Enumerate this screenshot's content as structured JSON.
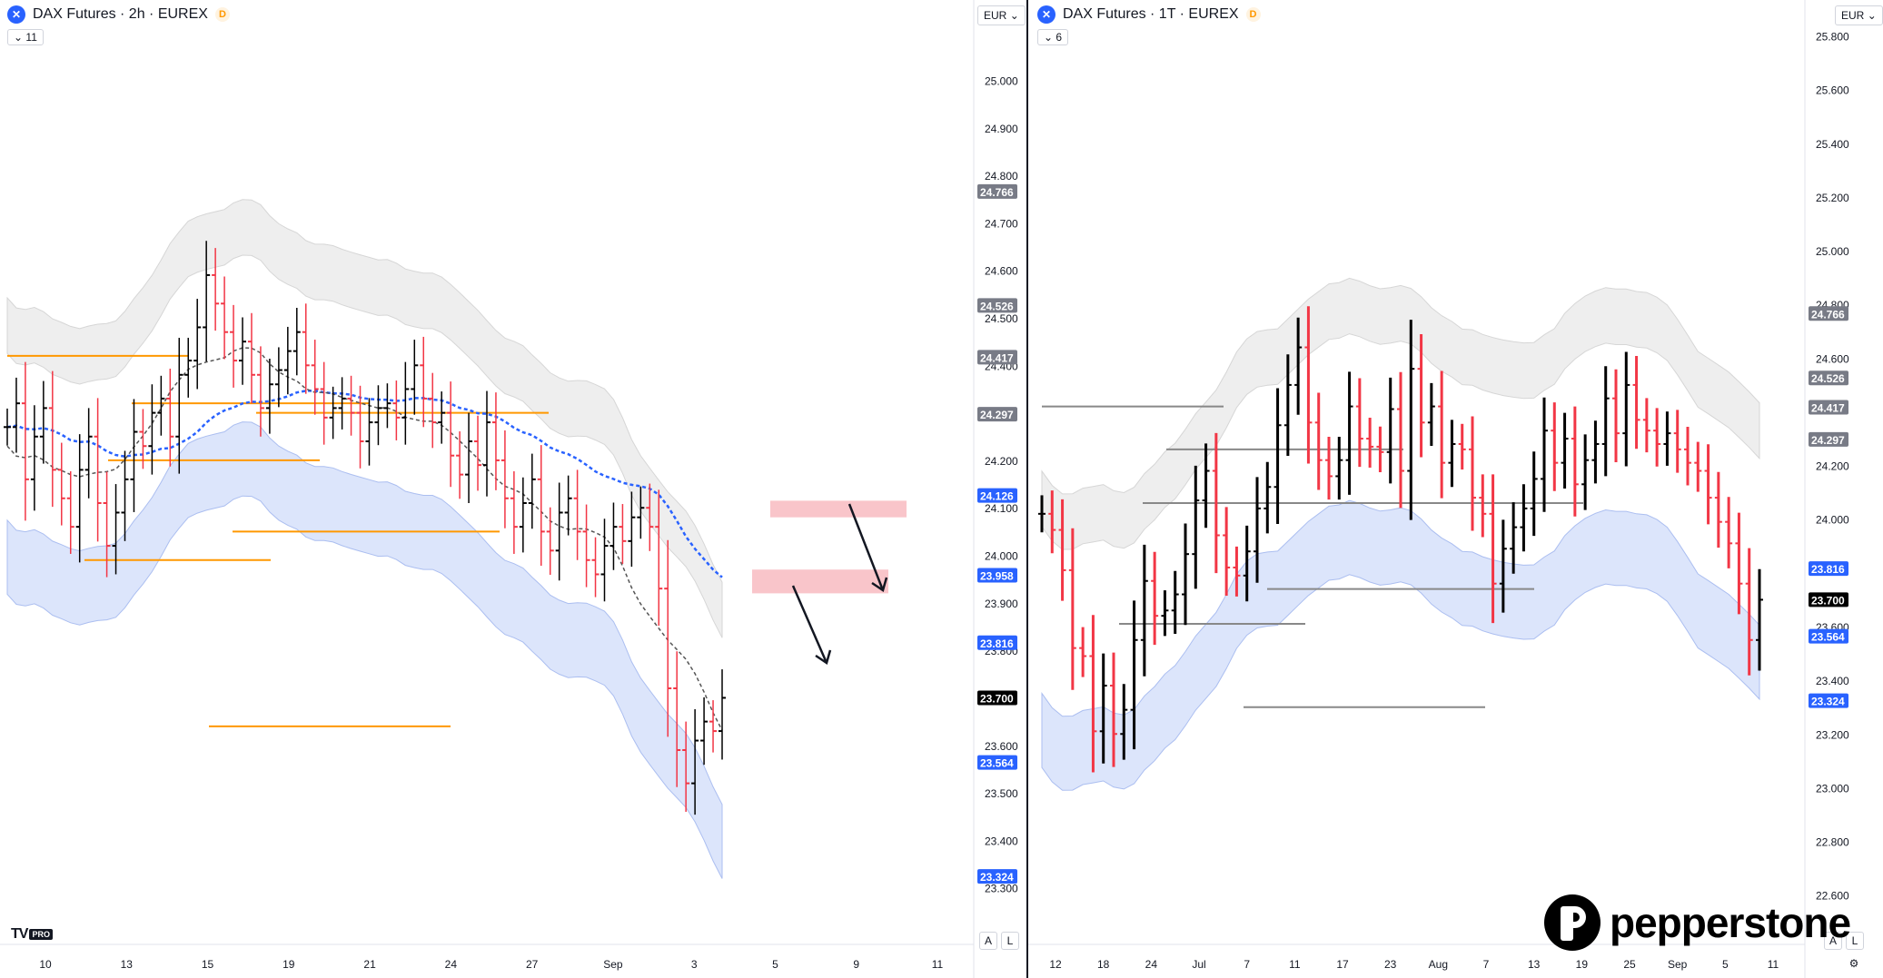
{
  "left_chart": {
    "title": "DAX Futures · 2h · EUREX",
    "exchange_badge": "D",
    "indicator_count": "11",
    "currency": "EUR",
    "axis_buttons": [
      "A",
      "L"
    ],
    "time_labels": [
      "10",
      "13",
      "15",
      "19",
      "21",
      "24",
      "27",
      "Sep",
      "3",
      "5",
      "9",
      "11"
    ]
  },
  "right_chart": {
    "title": "DAX Futures · 1T · EUREX",
    "exchange_badge": "D",
    "indicator_count": "6",
    "currency": "EUR",
    "axis_buttons": [
      "A",
      "L"
    ],
    "time_labels": [
      "12",
      "18",
      "24",
      "Jul",
      "7",
      "11",
      "17",
      "23",
      "Aug",
      "7",
      "13",
      "19",
      "25",
      "Sep",
      "5",
      "11"
    ]
  },
  "branding": {
    "tradingview_logo": "TV",
    "tradingview_badge": "PRO",
    "pepperstone": "pepperstone"
  },
  "colors": {
    "bull": "#000000",
    "bear": "#f23645",
    "ema_blue": "#2962ff",
    "level_orange": "#ff9800",
    "zone_red": "#f7b6bd",
    "band_blue": "#d6e1fb",
    "band_gray": "#ececec"
  },
  "chart_data": [
    {
      "type": "ohlc",
      "title": "DAX Futures · 2h · EUREX",
      "ylim": [
        23200,
        25150
      ],
      "y_ticks": [
        23300,
        23400,
        23500,
        23600,
        23800,
        23900,
        24000,
        24100,
        24200,
        24400,
        24500,
        24600,
        24700,
        24800,
        24900,
        25000
      ],
      "price_tags": [
        {
          "value": "24.766",
          "kind": "gray"
        },
        {
          "value": "24.526",
          "kind": "gray"
        },
        {
          "value": "24.417",
          "kind": "gray"
        },
        {
          "value": "24.297",
          "kind": "gray"
        },
        {
          "value": "24.126",
          "kind": "blue"
        },
        {
          "value": "23.958",
          "kind": "blue"
        },
        {
          "value": "23.816",
          "kind": "blue"
        },
        {
          "value": "23.700",
          "kind": "black"
        },
        {
          "value": "23.564",
          "kind": "blue"
        },
        {
          "value": "23.324",
          "kind": "blue"
        }
      ],
      "close_series": [
        24270,
        24320,
        24160,
        24250,
        24310,
        24180,
        24120,
        24060,
        24180,
        24250,
        24110,
        24020,
        24090,
        24160,
        24260,
        24230,
        24300,
        24330,
        24250,
        24380,
        24410,
        24480,
        24590,
        24530,
        24470,
        24410,
        24450,
        24380,
        24310,
        24360,
        24390,
        24430,
        24470,
        24400,
        24350,
        24290,
        24310,
        24330,
        24300,
        24240,
        24280,
        24310,
        24320,
        24290,
        24350,
        24400,
        24330,
        24280,
        24300,
        24210,
        24170,
        24240,
        24190,
        24280,
        24200,
        24120,
        24060,
        24110,
        24160,
        24050,
        24010,
        24090,
        24120,
        24050,
        23990,
        23960,
        24020,
        24060,
        24030,
        24080,
        24100,
        24060,
        23930,
        23720,
        23590,
        23520,
        23610,
        23650,
        23630,
        23700
      ],
      "series": [
        {
          "name": "",
          "kind": "ema-dashed-blue"
        },
        {
          "name": "",
          "kind": "sma-dashed-gray"
        }
      ],
      "levels": [
        24420,
        24320,
        24300,
        24200,
        24050,
        23990,
        23640
      ],
      "supply_zones": [
        [
          24115,
          24080
        ],
        [
          23970,
          23920
        ]
      ],
      "arrows_down": 2
    },
    {
      "type": "ohlc",
      "title": "DAX Futures · 1T · EUREX",
      "ylim": [
        22450,
        25900
      ],
      "y_ticks": [
        22600,
        22800,
        23000,
        23200,
        23400,
        23600,
        24000,
        24200,
        24600,
        24800,
        25000,
        25200,
        25400,
        25600,
        25800
      ],
      "price_tags": [
        {
          "value": "24.766",
          "kind": "gray"
        },
        {
          "value": "24.526",
          "kind": "gray"
        },
        {
          "value": "24.417",
          "kind": "gray"
        },
        {
          "value": "24.297",
          "kind": "gray"
        },
        {
          "value": "23.816",
          "kind": "blue"
        },
        {
          "value": "23.700",
          "kind": "black"
        },
        {
          "value": "23.564",
          "kind": "blue"
        },
        {
          "value": "23.324",
          "kind": "blue"
        }
      ],
      "close_series": [
        24020,
        23960,
        23810,
        23520,
        23490,
        23210,
        23380,
        23200,
        23290,
        23550,
        23770,
        23640,
        23660,
        23720,
        23870,
        24070,
        24180,
        23940,
        23820,
        23790,
        23880,
        24040,
        24120,
        24350,
        24500,
        24640,
        24360,
        24220,
        24160,
        24220,
        24420,
        24300,
        24270,
        24250,
        24410,
        24180,
        24560,
        24360,
        24420,
        24210,
        24280,
        24260,
        24080,
        24020,
        23760,
        23890,
        23970,
        24040,
        24150,
        24330,
        24210,
        24300,
        24130,
        24220,
        24280,
        24450,
        24320,
        24500,
        24370,
        24330,
        24280,
        24320,
        24260,
        24210,
        24180,
        24080,
        23990,
        23910,
        23760,
        23550,
        23700
      ],
      "levels": [
        24420,
        24260,
        24060,
        24060,
        23740,
        23610,
        23300
      ],
      "series": [
        {
          "name": "",
          "kind": "cloud"
        }
      ]
    }
  ]
}
